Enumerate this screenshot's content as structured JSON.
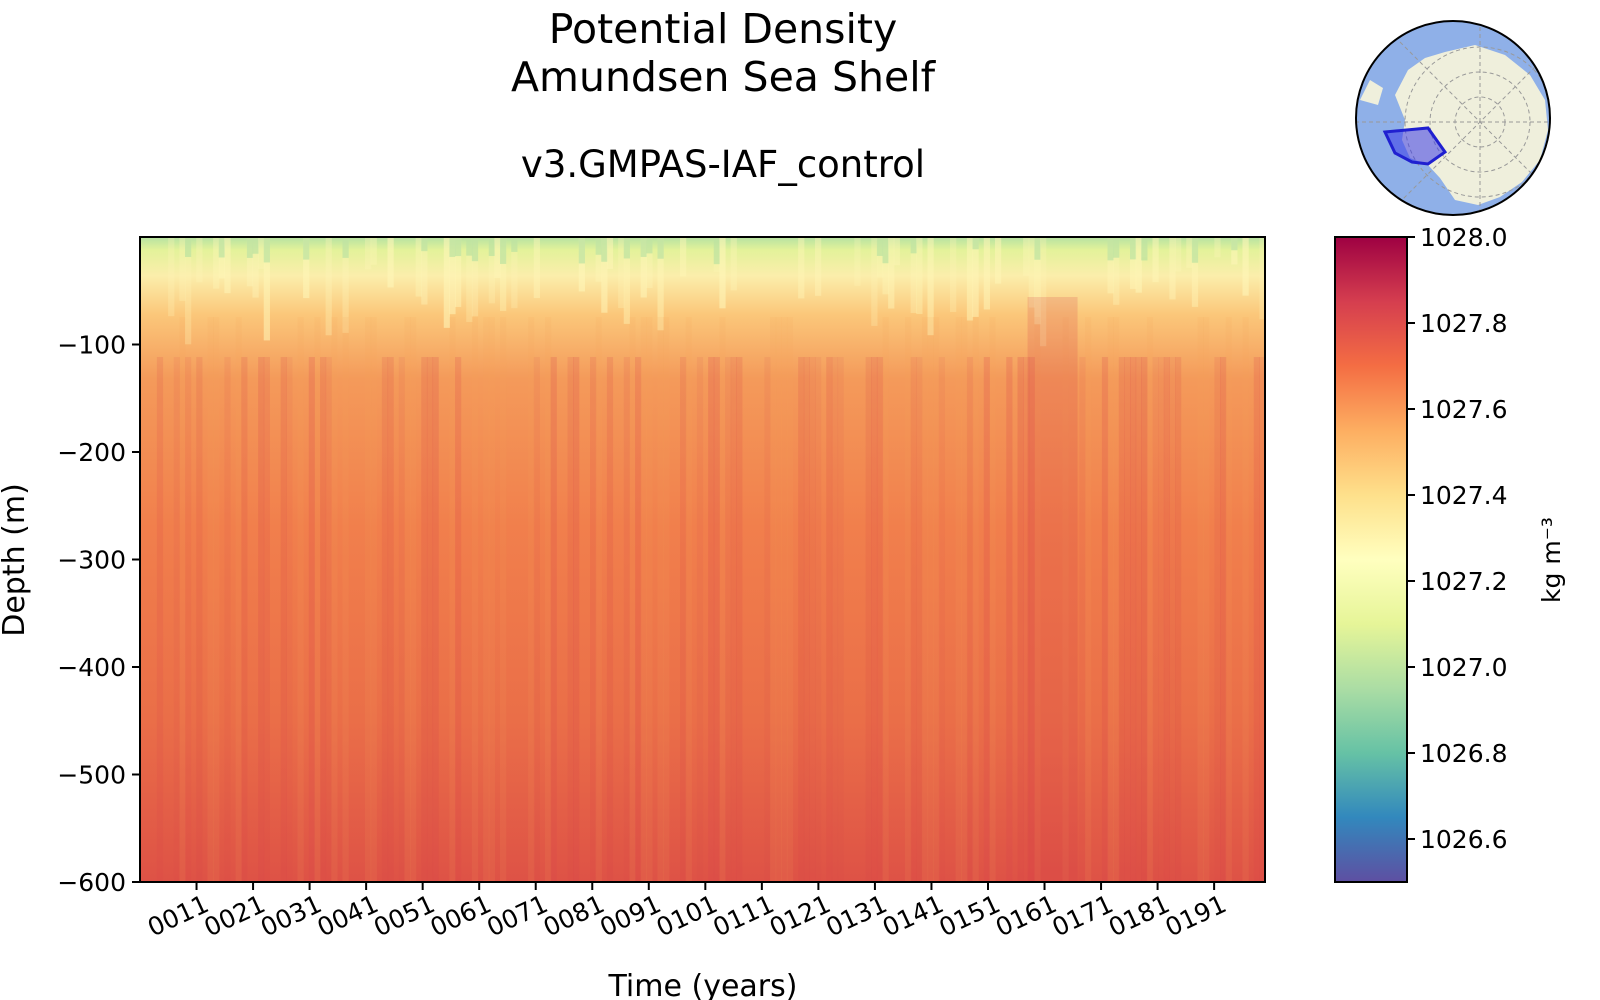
{
  "header": {
    "title_line1": "Potential Density",
    "title_line2": "Amundsen Sea Shelf",
    "subtitle": "v3.GMPAS-IAF_control"
  },
  "chart_data": {
    "type": "heatmap",
    "title": "Potential Density\nAmundsen Sea Shelf",
    "subtitle": "v3.GMPAS-IAF_control",
    "xlabel": "Time (years)",
    "ylabel": "Depth (m)",
    "x_tick_labels": [
      "0011",
      "0021",
      "0031",
      "0041",
      "0051",
      "0061",
      "0071",
      "0081",
      "0091",
      "0101",
      "0111",
      "0121",
      "0131",
      "0141",
      "0151",
      "0161",
      "0171",
      "0181",
      "0191"
    ],
    "x_range": [
      1,
      200
    ],
    "ylim": [
      -600,
      0
    ],
    "y_ticks": [
      -100,
      -200,
      -300,
      -400,
      -500,
      -600
    ],
    "y_tick_labels": [
      "−100",
      "−200",
      "−300",
      "−400",
      "−500",
      "−600"
    ],
    "colorbar": {
      "label": "kg m⁻³",
      "range": [
        1026.5,
        1028.0
      ],
      "ticks": [
        1026.6,
        1026.8,
        1027.0,
        1027.2,
        1027.4,
        1027.6,
        1027.8,
        1028.0
      ],
      "tick_labels": [
        "1026.6",
        "1026.8",
        "1027.0",
        "1027.2",
        "1027.4",
        "1027.6",
        "1027.8",
        "1028.0"
      ],
      "colormap": "Spectral_r"
    },
    "approximate_profile": {
      "depth_m": [
        -5,
        -25,
        -50,
        -100,
        -200,
        -300,
        -400,
        -500,
        -600
      ],
      "density": [
        1027.1,
        1027.3,
        1027.45,
        1027.58,
        1027.66,
        1027.7,
        1027.74,
        1027.77,
        1027.8
      ]
    },
    "inset_map": "antarctica-polar-stereographic with highlighted Amundsen Sea region"
  },
  "colors": {
    "ocean": "#8fb0e8",
    "land": "#efefdc",
    "region": "#3a3ae8"
  }
}
